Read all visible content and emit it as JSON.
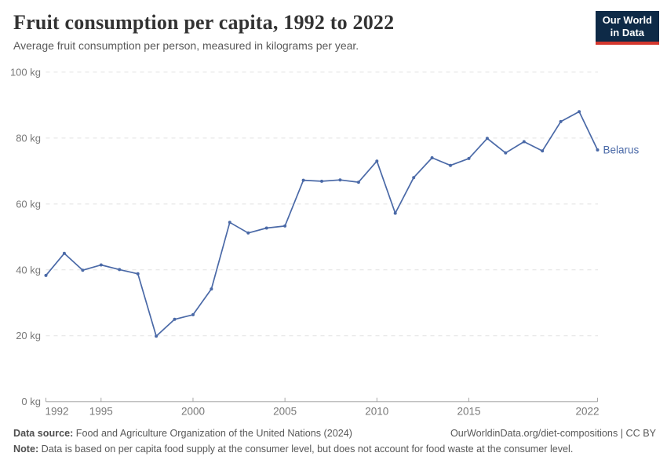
{
  "header": {
    "title": "Fruit consumption per capita, 1992 to 2022",
    "subtitle": "Average fruit consumption per person, measured in kilograms per year."
  },
  "logo": {
    "line1": "Our World",
    "line2": "in Data",
    "bg_color": "#0e2a47",
    "bar_color": "#d4372e"
  },
  "palette": {
    "series_blue": "#4a69a7",
    "grid": "#e2e2e2",
    "axis": "#a8a8a8",
    "tick_text": "#787878"
  },
  "chart_data": {
    "type": "line",
    "title": "Fruit consumption per capita, 1992 to 2022",
    "subtitle": "Average fruit consumption per person, measured in kilograms per year.",
    "xlabel": "",
    "ylabel": "kg",
    "grid": "horizontal-dashed",
    "legend_position": "end-of-line-label",
    "x_range": [
      1992,
      2022
    ],
    "ylim": [
      0,
      100
    ],
    "x": [
      1992,
      1993,
      1994,
      1995,
      1996,
      1997,
      1998,
      1999,
      2000,
      2001,
      2002,
      2003,
      2004,
      2005,
      2006,
      2007,
      2008,
      2009,
      2010,
      2011,
      2012,
      2013,
      2014,
      2015,
      2016,
      2017,
      2018,
      2019,
      2020,
      2021,
      2022
    ],
    "x_ticks": [
      1992,
      1995,
      2000,
      2005,
      2010,
      2015,
      2022
    ],
    "y_ticks": [
      {
        "value": 0,
        "label": "0 kg"
      },
      {
        "value": 20,
        "label": "20 kg"
      },
      {
        "value": 40,
        "label": "40 kg"
      },
      {
        "value": 60,
        "label": "60 kg"
      },
      {
        "value": 80,
        "label": "80 kg"
      },
      {
        "value": 100,
        "label": "100 kg"
      }
    ],
    "series": [
      {
        "name": "Belarus",
        "color": "#4a69a7",
        "values": [
          38.3,
          45.0,
          39.9,
          41.5,
          40.1,
          38.8,
          19.9,
          25.0,
          26.4,
          34.2,
          54.4,
          51.2,
          52.7,
          53.3,
          67.2,
          66.9,
          67.3,
          66.6,
          73.0,
          57.2,
          68.0,
          74.0,
          71.7,
          73.8,
          79.9,
          75.5,
          78.9,
          76.1,
          85.0,
          88.0,
          76.4
        ]
      }
    ]
  },
  "footer": {
    "source_label": "Data source:",
    "source_text": " Food and Agriculture Organization of the United Nations (2024)",
    "right_text": "OurWorldinData.org/diet-compositions | CC BY",
    "note_label": "Note:",
    "note_text": " Data is based on per capita food supply at the consumer level, but does not account for food waste at the consumer level."
  }
}
